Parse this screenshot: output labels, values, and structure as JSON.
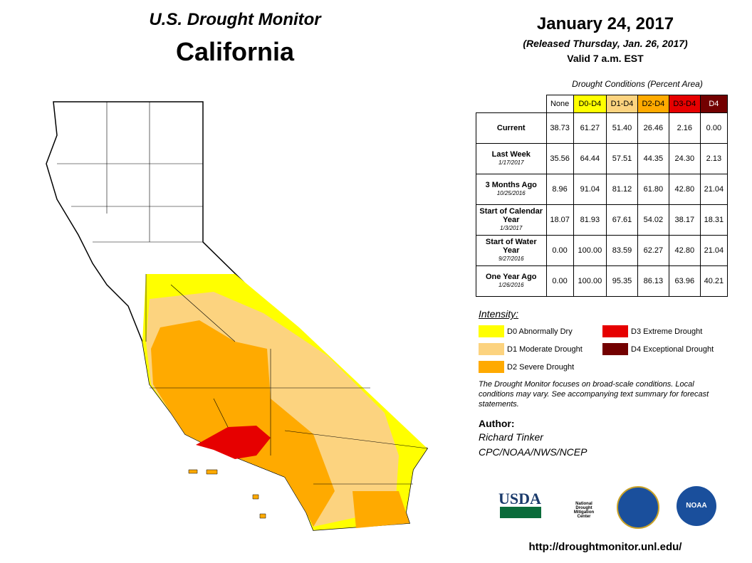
{
  "header": {
    "title": "U.S. Drought Monitor",
    "state": "California",
    "date": "January 24, 2017",
    "released": "(Released Thursday, Jan. 26, 2017)",
    "valid": "Valid 7 a.m. EST"
  },
  "table": {
    "caption": "Drought Conditions (Percent Area)",
    "columns": [
      "None",
      "D0-D4",
      "D1-D4",
      "D2-D4",
      "D3-D4",
      "D4"
    ],
    "rows": [
      {
        "label": "Current",
        "date": null,
        "values": [
          "38.73",
          "61.27",
          "51.40",
          "26.46",
          "2.16",
          "0.00"
        ]
      },
      {
        "label": "Last Week",
        "date": "1/17/2017",
        "values": [
          "35.56",
          "64.44",
          "57.51",
          "44.35",
          "24.30",
          "2.13"
        ]
      },
      {
        "label": "3 Months Ago",
        "date": "10/25/2016",
        "values": [
          "8.96",
          "91.04",
          "81.12",
          "61.80",
          "42.80",
          "21.04"
        ]
      },
      {
        "label": "Start of Calendar Year",
        "date": "1/3/2017",
        "values": [
          "18.07",
          "81.93",
          "67.61",
          "54.02",
          "38.17",
          "18.31"
        ]
      },
      {
        "label": "Start of Water Year",
        "date": "9/27/2016",
        "values": [
          "0.00",
          "100.00",
          "83.59",
          "62.27",
          "42.80",
          "21.04"
        ]
      },
      {
        "label": "One Year Ago",
        "date": "1/26/2016",
        "values": [
          "0.00",
          "100.00",
          "95.35",
          "86.13",
          "63.96",
          "40.21"
        ]
      }
    ]
  },
  "legend": {
    "title": "Intensity:",
    "items": [
      {
        "label": "D0 Abnormally Dry",
        "color": "#ffff00"
      },
      {
        "label": "D1 Moderate Drought",
        "color": "#fcd37f"
      },
      {
        "label": "D2 Severe Drought",
        "color": "#ffaa00"
      },
      {
        "label": "D3 Extreme Drought",
        "color": "#e60000"
      },
      {
        "label": "D4 Exceptional Drought",
        "color": "#730000"
      }
    ]
  },
  "note": "The Drought Monitor focuses on broad-scale conditions. Local conditions may vary. See accompanying text summary for forecast statements.",
  "author": {
    "heading": "Author:",
    "name": "Richard Tinker",
    "org": "CPC/NOAA/NWS/NCEP"
  },
  "logos": {
    "usda": "USDA",
    "ndmc": "National Drought Mitigation Center",
    "noaa": "NOAA"
  },
  "url": "http://droughtmonitor.unl.edu/"
}
